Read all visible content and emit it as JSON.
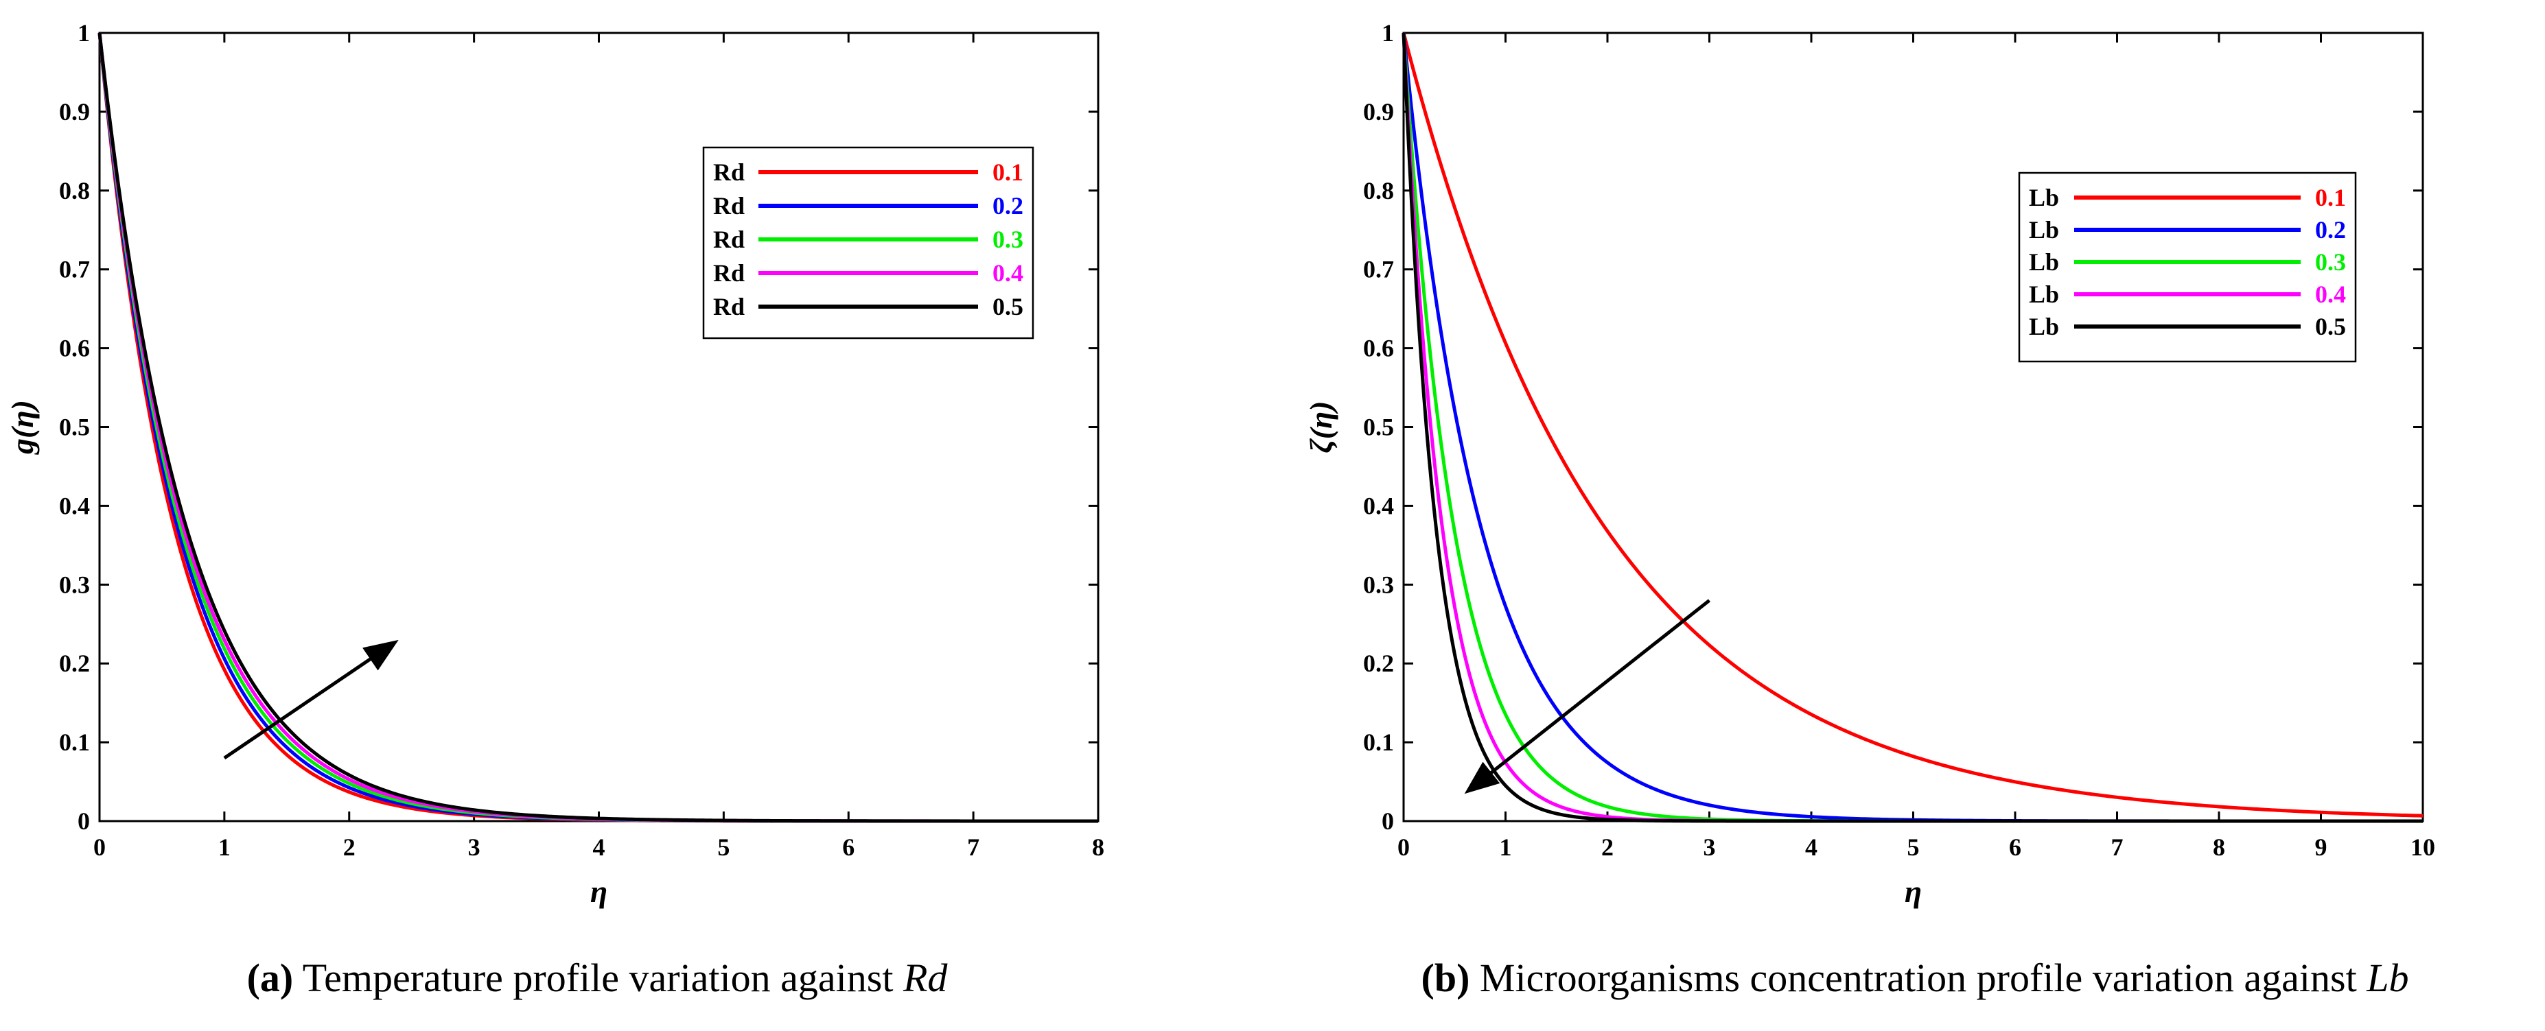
{
  "chart_data": [
    {
      "type": "line",
      "id": "a",
      "caption_tag": "(a)",
      "caption_text": "Temperature profile variation against",
      "caption_symbol": "Rd",
      "xlabel": "η",
      "ylabel": "g(η)",
      "xlim": [
        0,
        8
      ],
      "ylim": [
        0,
        1
      ],
      "xticks": [
        0,
        1,
        2,
        3,
        4,
        5,
        6,
        7,
        8
      ],
      "yticks": [
        0,
        0.1,
        0.2,
        0.3,
        0.4,
        0.5,
        0.6,
        0.7,
        0.8,
        0.9,
        1
      ],
      "grid": false,
      "legend_position": "top-right",
      "legend_param": "Rd",
      "arrow": {
        "direction": "increasing",
        "from": [
          1.0,
          0.08
        ],
        "to": [
          2.35,
          0.225
        ]
      },
      "series": [
        {
          "name": "0.1",
          "color": "#ff0000",
          "decay": 1.65
        },
        {
          "name": "0.2",
          "color": "#0000ff",
          "decay": 1.58
        },
        {
          "name": "0.3",
          "color": "#00ee00",
          "decay": 1.52
        },
        {
          "name": "0.4",
          "color": "#ff00ff",
          "decay": 1.47
        },
        {
          "name": "0.5",
          "color": "#000000",
          "decay": 1.42
        }
      ]
    },
    {
      "type": "line",
      "id": "b",
      "caption_tag": "(b)",
      "caption_text": "Microorganisms concentration profile variation against",
      "caption_symbol": "Lb",
      "xlabel": "η",
      "ylabel": "ζ(η)",
      "xlim": [
        0,
        10
      ],
      "ylim": [
        0,
        1
      ],
      "xticks": [
        0,
        1,
        2,
        3,
        4,
        5,
        6,
        7,
        8,
        9,
        10
      ],
      "yticks": [
        0,
        0.1,
        0.2,
        0.3,
        0.4,
        0.5,
        0.6,
        0.7,
        0.8,
        0.9,
        1
      ],
      "grid": false,
      "legend_position": "top-right",
      "legend_param": "Lb",
      "arrow": {
        "direction": "decreasing",
        "from": [
          3.0,
          0.28
        ],
        "to": [
          0.65,
          0.04
        ]
      },
      "series": [
        {
          "name": "0.1",
          "color": "#ff0000",
          "decay": 0.5
        },
        {
          "name": "0.2",
          "color": "#0000ff",
          "decay": 1.3
        },
        {
          "name": "0.3",
          "color": "#00ee00",
          "decay": 2.0
        },
        {
          "name": "0.4",
          "color": "#ff00ff",
          "decay": 2.6
        },
        {
          "name": "0.5",
          "color": "#000000",
          "decay": 3.1
        }
      ]
    }
  ]
}
